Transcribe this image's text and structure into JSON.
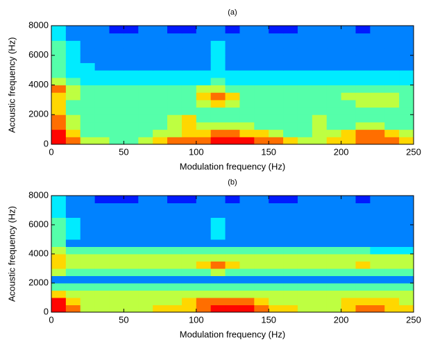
{
  "chart_data": [
    {
      "type": "heatmap",
      "title": "(a)",
      "x_label": "Modulation frequency (Hz)",
      "y_label": "Acoustic frequency (Hz)",
      "colormap": "jet",
      "x_bins": [
        0,
        10,
        20,
        30,
        40,
        50,
        60,
        70,
        80,
        90,
        100,
        110,
        120,
        130,
        140,
        150,
        160,
        170,
        180,
        190,
        200,
        210,
        220,
        230,
        240,
        250
      ],
      "y_bins": [
        0,
        500,
        1000,
        1500,
        2000,
        2500,
        3000,
        3500,
        4000,
        4500,
        5000,
        5500,
        6000,
        6500,
        7000,
        7500,
        8000
      ],
      "xlim": [
        0,
        250
      ],
      "ylim": [
        0,
        8000
      ],
      "xticks": [
        0,
        50,
        100,
        150,
        200,
        250
      ],
      "yticks": [
        0,
        2000,
        4000,
        6000,
        8000
      ],
      "z": [
        [
          9,
          8,
          6,
          6,
          5,
          5,
          6,
          7,
          8,
          8,
          8,
          9,
          9,
          9,
          8,
          8,
          7,
          6,
          6,
          7,
          7,
          8,
          8,
          8,
          7
        ],
        [
          9,
          7,
          5,
          5,
          5,
          5,
          5,
          6,
          6,
          7,
          7,
          8,
          8,
          7,
          7,
          6,
          5,
          5,
          6,
          6,
          7,
          8,
          8,
          7,
          6
        ],
        [
          8,
          6,
          5,
          5,
          5,
          5,
          5,
          5,
          6,
          7,
          6,
          6,
          6,
          6,
          5,
          5,
          5,
          5,
          6,
          5,
          5,
          6,
          6,
          5,
          5
        ],
        [
          8,
          6,
          5,
          5,
          5,
          5,
          5,
          5,
          6,
          7,
          5,
          5,
          5,
          5,
          5,
          5,
          5,
          5,
          6,
          5,
          5,
          5,
          5,
          5,
          5
        ],
        [
          7,
          5,
          5,
          5,
          5,
          5,
          5,
          5,
          5,
          5,
          5,
          5,
          5,
          5,
          5,
          5,
          5,
          5,
          5,
          5,
          5,
          5,
          5,
          5,
          5
        ],
        [
          7,
          5,
          5,
          5,
          5,
          5,
          5,
          5,
          5,
          5,
          6,
          7,
          6,
          5,
          5,
          5,
          5,
          5,
          5,
          5,
          5,
          6,
          6,
          6,
          5
        ],
        [
          7,
          6,
          5,
          5,
          5,
          5,
          5,
          5,
          5,
          5,
          7,
          8,
          7,
          5,
          5,
          5,
          5,
          5,
          5,
          5,
          6,
          6,
          6,
          6,
          5
        ],
        [
          8,
          6,
          5,
          5,
          5,
          5,
          5,
          5,
          5,
          5,
          6,
          6,
          5,
          5,
          5,
          5,
          5,
          5,
          5,
          5,
          5,
          5,
          5,
          5,
          5
        ],
        [
          6,
          5,
          4,
          4,
          4,
          4,
          4,
          4,
          4,
          4,
          4,
          5,
          4,
          4,
          4,
          4,
          4,
          4,
          4,
          4,
          4,
          4,
          4,
          4,
          4
        ],
        [
          5,
          4,
          4,
          4,
          4,
          4,
          4,
          4,
          4,
          4,
          4,
          4,
          4,
          4,
          4,
          4,
          4,
          4,
          4,
          4,
          4,
          4,
          4,
          4,
          4
        ],
        [
          5,
          4,
          4,
          3,
          3,
          3,
          3,
          3,
          3,
          3,
          3,
          4,
          3,
          3,
          3,
          3,
          3,
          3,
          3,
          3,
          3,
          3,
          3,
          3,
          3
        ],
        [
          5,
          4,
          3,
          3,
          3,
          3,
          3,
          3,
          3,
          3,
          3,
          4,
          3,
          3,
          3,
          3,
          3,
          3,
          3,
          3,
          3,
          3,
          3,
          3,
          3
        ],
        [
          5,
          4,
          3,
          3,
          3,
          3,
          3,
          3,
          3,
          3,
          3,
          4,
          3,
          3,
          3,
          3,
          3,
          3,
          3,
          3,
          3,
          3,
          3,
          3,
          3
        ],
        [
          5,
          4,
          3,
          3,
          3,
          3,
          3,
          3,
          3,
          3,
          3,
          4,
          3,
          3,
          3,
          3,
          3,
          3,
          3,
          3,
          3,
          3,
          3,
          3,
          3
        ],
        [
          4,
          3,
          3,
          3,
          3,
          3,
          3,
          3,
          3,
          3,
          3,
          3,
          3,
          3,
          3,
          3,
          3,
          3,
          3,
          3,
          3,
          3,
          3,
          3,
          3
        ],
        [
          4,
          3,
          3,
          3,
          2,
          2,
          3,
          3,
          2,
          2,
          3,
          3,
          2,
          3,
          3,
          2,
          2,
          3,
          3,
          3,
          3,
          2,
          3,
          3,
          3
        ]
      ]
    },
    {
      "type": "heatmap",
      "title": "(b)",
      "x_label": "Modulation frequency (Hz)",
      "y_label": "Acoustic frequency (Hz)",
      "colormap": "jet",
      "x_bins": [
        0,
        10,
        20,
        30,
        40,
        50,
        60,
        70,
        80,
        90,
        100,
        110,
        120,
        130,
        140,
        150,
        160,
        170,
        180,
        190,
        200,
        210,
        220,
        230,
        240,
        250
      ],
      "y_bins": [
        0,
        500,
        1000,
        1500,
        2000,
        2500,
        3000,
        3500,
        4000,
        4500,
        5000,
        5500,
        6000,
        6500,
        7000,
        7500,
        8000
      ],
      "xlim": [
        0,
        250
      ],
      "ylim": [
        0,
        8000
      ],
      "xticks": [
        0,
        50,
        100,
        150,
        200,
        250
      ],
      "yticks": [
        0,
        2000,
        4000,
        6000,
        8000
      ],
      "z": [
        [
          9,
          8,
          6,
          6,
          6,
          6,
          6,
          7,
          7,
          7,
          8,
          9,
          9,
          9,
          8,
          7,
          7,
          6,
          6,
          6,
          7,
          8,
          8,
          7,
          7
        ],
        [
          9,
          7,
          6,
          6,
          6,
          6,
          6,
          6,
          6,
          7,
          8,
          8,
          8,
          8,
          7,
          6,
          6,
          6,
          6,
          6,
          7,
          7,
          7,
          7,
          6
        ],
        [
          7,
          6,
          6,
          6,
          6,
          6,
          6,
          6,
          6,
          6,
          6,
          6,
          6,
          6,
          6,
          6,
          6,
          6,
          6,
          6,
          6,
          6,
          6,
          6,
          6
        ],
        [
          5,
          5,
          5,
          5,
          5,
          5,
          5,
          5,
          5,
          5,
          5,
          5,
          5,
          5,
          5,
          5,
          5,
          5,
          5,
          5,
          5,
          5,
          5,
          5,
          5
        ],
        [
          3,
          3,
          3,
          3,
          3,
          3,
          3,
          3,
          3,
          3,
          3,
          3,
          3,
          3,
          3,
          3,
          3,
          3,
          3,
          3,
          3,
          3,
          3,
          3,
          3
        ],
        [
          6,
          5,
          5,
          5,
          5,
          5,
          5,
          5,
          5,
          5,
          5,
          6,
          5,
          5,
          5,
          5,
          5,
          5,
          5,
          5,
          5,
          5,
          5,
          5,
          5
        ],
        [
          7,
          6,
          6,
          6,
          6,
          6,
          6,
          6,
          6,
          6,
          7,
          8,
          7,
          6,
          6,
          6,
          6,
          6,
          6,
          6,
          6,
          7,
          6,
          6,
          6
        ],
        [
          7,
          6,
          6,
          6,
          6,
          6,
          6,
          6,
          6,
          6,
          6,
          6,
          6,
          6,
          6,
          6,
          6,
          6,
          6,
          6,
          6,
          6,
          6,
          6,
          6
        ],
        [
          6,
          5,
          5,
          5,
          5,
          5,
          5,
          5,
          5,
          5,
          5,
          5,
          5,
          5,
          5,
          5,
          5,
          5,
          5,
          5,
          5,
          5,
          4,
          4,
          4
        ],
        [
          5,
          3,
          3,
          3,
          3,
          3,
          3,
          3,
          3,
          3,
          3,
          3,
          3,
          3,
          3,
          3,
          3,
          3,
          3,
          3,
          3,
          3,
          3,
          3,
          3
        ],
        [
          5,
          4,
          3,
          3,
          3,
          3,
          3,
          3,
          3,
          3,
          3,
          4,
          3,
          3,
          3,
          3,
          3,
          3,
          3,
          3,
          3,
          3,
          3,
          3,
          3
        ],
        [
          5,
          4,
          3,
          3,
          3,
          3,
          3,
          3,
          3,
          3,
          3,
          4,
          3,
          3,
          3,
          3,
          3,
          3,
          3,
          3,
          3,
          3,
          3,
          3,
          3
        ],
        [
          5,
          4,
          3,
          3,
          3,
          3,
          3,
          3,
          3,
          3,
          3,
          4,
          3,
          3,
          3,
          3,
          3,
          3,
          3,
          3,
          3,
          3,
          3,
          3,
          3
        ],
        [
          4,
          3,
          3,
          3,
          3,
          3,
          3,
          3,
          3,
          3,
          3,
          3,
          3,
          3,
          3,
          3,
          3,
          3,
          3,
          3,
          3,
          3,
          3,
          3,
          3
        ],
        [
          4,
          3,
          3,
          3,
          3,
          3,
          3,
          3,
          3,
          3,
          3,
          3,
          3,
          3,
          3,
          3,
          3,
          3,
          3,
          3,
          3,
          3,
          3,
          3,
          3
        ],
        [
          4,
          3,
          3,
          2,
          2,
          2,
          3,
          3,
          2,
          2,
          3,
          3,
          2,
          3,
          3,
          2,
          2,
          3,
          3,
          3,
          3,
          2,
          3,
          3,
          3
        ]
      ]
    }
  ]
}
